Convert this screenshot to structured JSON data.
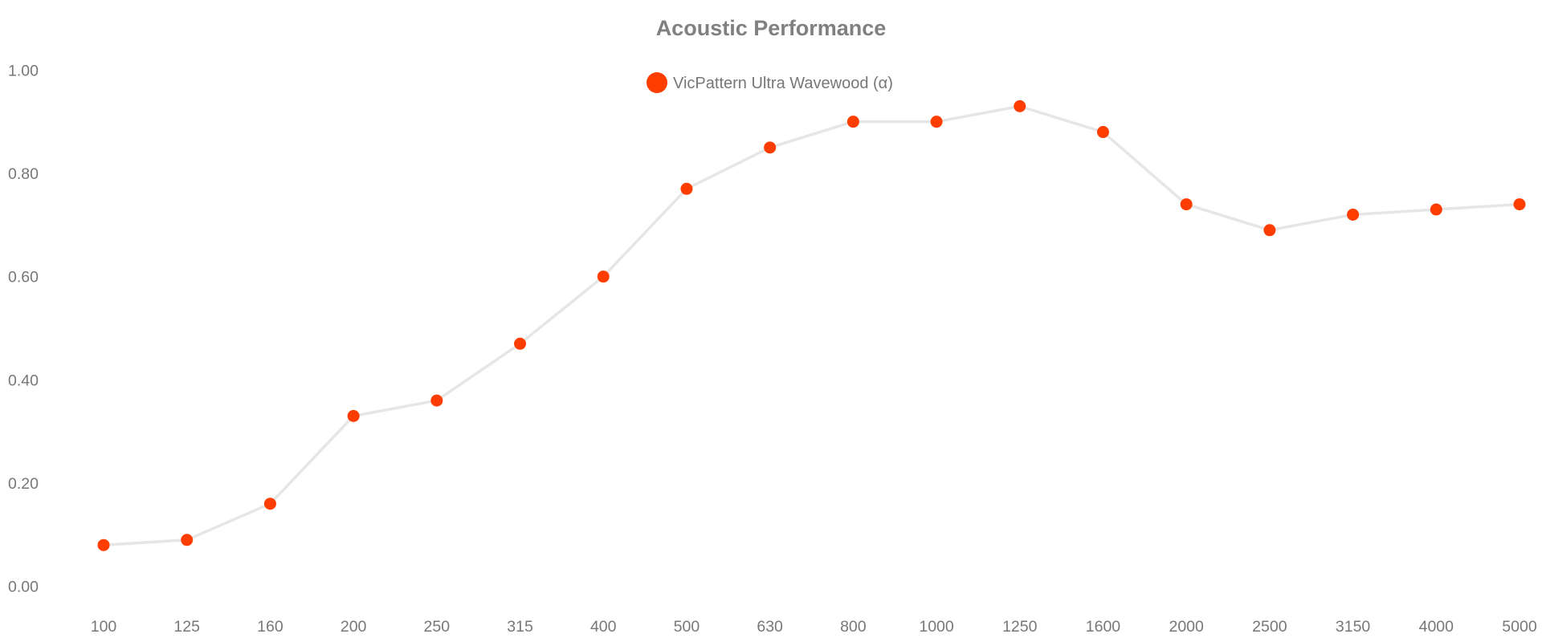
{
  "chart_data": {
    "type": "line",
    "title": "Acoustic Performance",
    "xlabel": "",
    "ylabel": "",
    "categories": [
      "100",
      "125",
      "160",
      "200",
      "250",
      "315",
      "400",
      "500",
      "630",
      "800",
      "1000",
      "1250",
      "1600",
      "2000",
      "2500",
      "3150",
      "4000",
      "5000"
    ],
    "series": [
      {
        "name": "VicPattern Ultra Wavewood (α)",
        "values": [
          0.08,
          0.09,
          0.16,
          0.33,
          0.36,
          0.47,
          0.6,
          0.77,
          0.85,
          0.9,
          0.9,
          0.93,
          0.88,
          0.74,
          0.69,
          0.72,
          0.73,
          0.74
        ]
      }
    ],
    "y_ticks": [
      "0.00",
      "0.20",
      "0.40",
      "0.60",
      "0.80",
      "1.00"
    ],
    "ylim": [
      -0.1,
      1.1
    ],
    "grid": false,
    "legend_position": "top-center",
    "colors": {
      "marker": "#ff3d00",
      "line": "#e6e6e6",
      "text": "#777777",
      "title": "#808080"
    }
  }
}
